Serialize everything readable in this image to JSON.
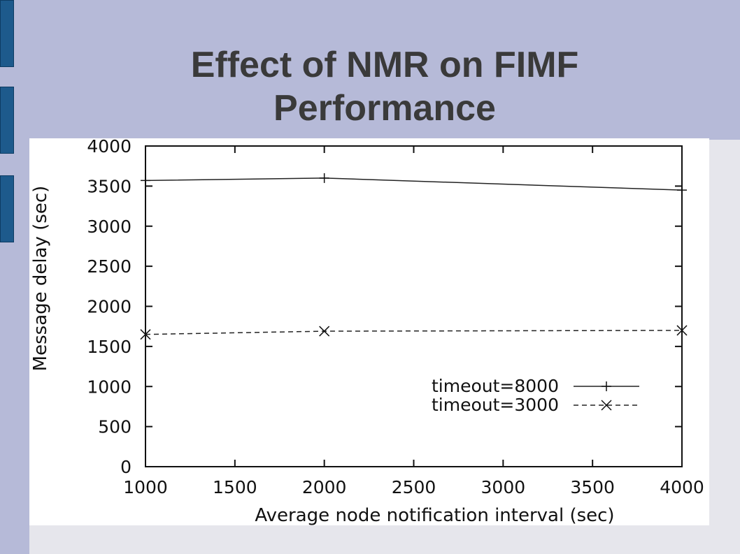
{
  "slide": {
    "title_line1": "Effect of NMR on FIMF",
    "title_line2": "Performance"
  },
  "colors": {
    "background": "#b6bad8",
    "accent_bar": "#1d5a8c",
    "title_text": "#3a3a3a"
  },
  "chart_data": {
    "type": "line",
    "xlabel": "Average node notification interval (sec)",
    "ylabel": "Message delay (sec)",
    "xlim": [
      1000,
      4000
    ],
    "ylim": [
      0,
      4000
    ],
    "x_ticks": [
      "1000",
      "1500",
      "2000",
      "2500",
      "3000",
      "3500",
      "4000"
    ],
    "y_ticks": [
      "0",
      "500",
      "1000",
      "1500",
      "2000",
      "2500",
      "3000",
      "3500",
      "4000"
    ],
    "grid": false,
    "legend_position": "bottom-right",
    "x": [
      1000,
      2000,
      4000
    ],
    "series": [
      {
        "name": "timeout=8000",
        "values": [
          3570,
          3600,
          3450
        ],
        "marker": "+",
        "dash": "solid"
      },
      {
        "name": "timeout=3000",
        "values": [
          1650,
          1690,
          1700
        ],
        "marker": "x",
        "dash": "dashed"
      }
    ]
  }
}
